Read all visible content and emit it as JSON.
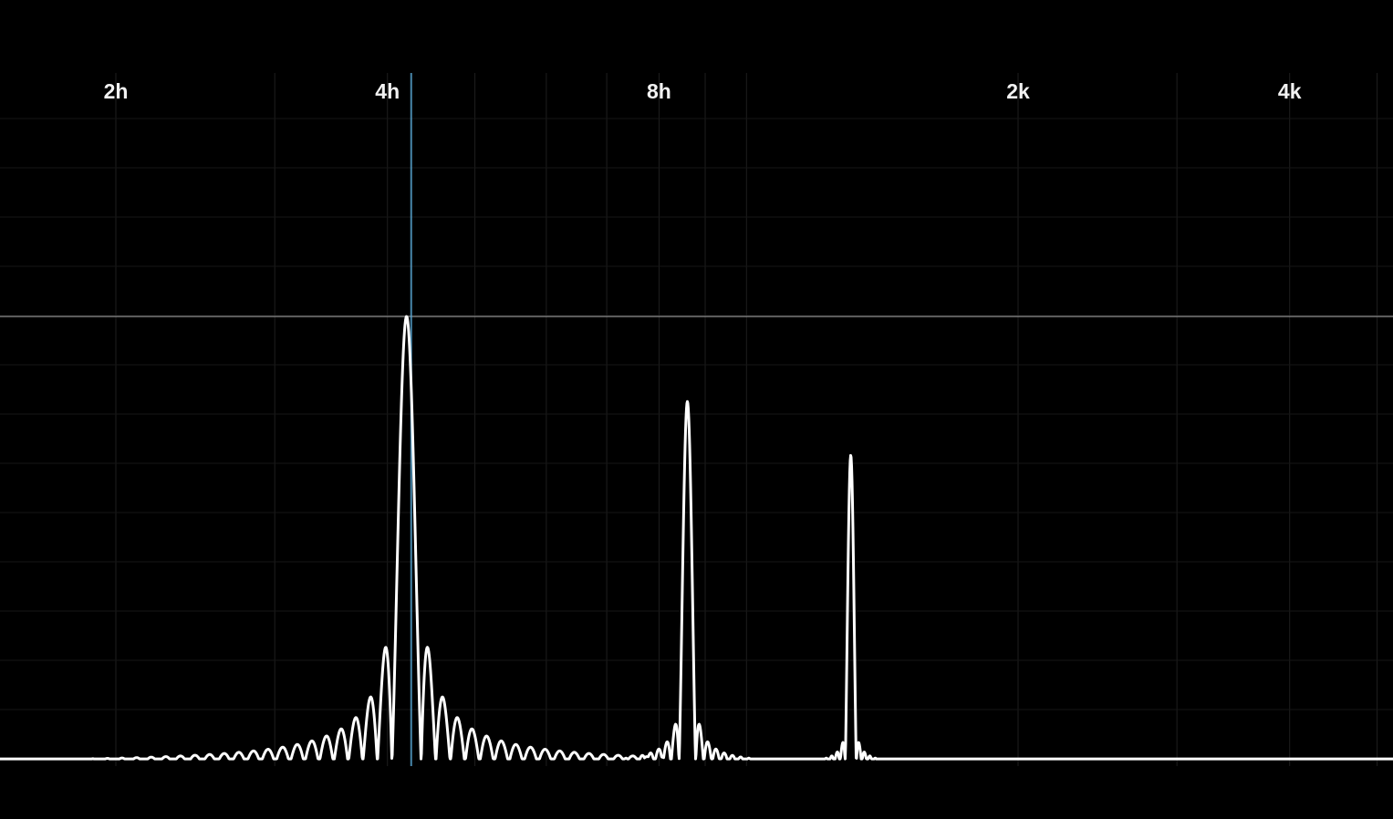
{
  "chart_data": {
    "type": "line",
    "title": "",
    "xlabel": "",
    "ylabel": "",
    "x_scale": "log",
    "grid": true,
    "background": "#000000",
    "trace_color": "#ffffff",
    "marker_color": "#5aa9d6",
    "reference_color": "#8a8a8a",
    "x_ticks": [
      {
        "label": "2h",
        "value": 200
      },
      {
        "label": "4h",
        "value": 400
      },
      {
        "label": "8h",
        "value": 800
      },
      {
        "label": "2k",
        "value": 2000
      },
      {
        "label": "4k",
        "value": 4000
      }
    ],
    "marker_x": 425,
    "reference_level": 1.0,
    "series": [
      {
        "peaks": [
          {
            "x": 420,
            "level": 1.0
          },
          {
            "x": 860,
            "level": 0.81
          },
          {
            "x": 1305,
            "level": 0.69
          }
        ]
      }
    ]
  }
}
